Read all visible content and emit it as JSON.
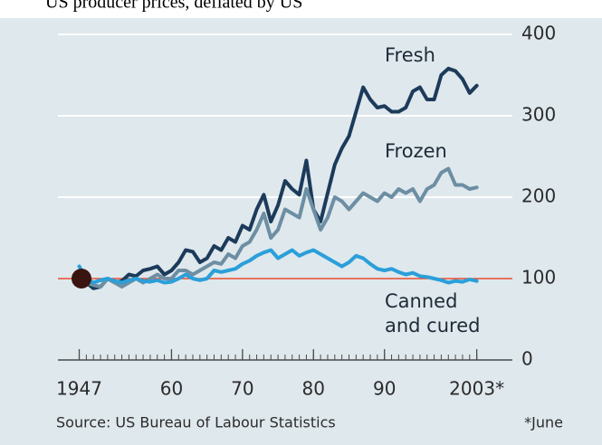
{
  "chart_data": {
    "type": "line",
    "title": "US producer prices, deflated by US",
    "source": "Source: US Bureau of Labour Statistics",
    "footnote": "*June",
    "x": [
      1947,
      1948,
      1949,
      1950,
      1951,
      1952,
      1953,
      1954,
      1955,
      1956,
      1957,
      1958,
      1959,
      1960,
      1961,
      1962,
      1963,
      1964,
      1965,
      1966,
      1967,
      1968,
      1969,
      1970,
      1971,
      1972,
      1973,
      1974,
      1975,
      1976,
      1977,
      1978,
      1979,
      1980,
      1981,
      1982,
      1983,
      1984,
      1985,
      1986,
      1987,
      1988,
      1989,
      1990,
      1991,
      1992,
      1993,
      1994,
      1995,
      1996,
      1997,
      1998,
      1999,
      2000,
      2001,
      2002,
      2003
    ],
    "series": [
      {
        "name": "Fresh",
        "color": "#1c3b5a",
        "values": [
          100,
          95,
          88,
          90,
          100,
          95,
          97,
          105,
          103,
          110,
          112,
          115,
          105,
          110,
          120,
          135,
          133,
          120,
          125,
          140,
          135,
          150,
          145,
          165,
          160,
          185,
          203,
          170,
          190,
          220,
          210,
          203,
          245,
          185,
          170,
          205,
          240,
          260,
          275,
          305,
          335,
          320,
          310,
          312,
          305,
          305,
          310,
          330,
          335,
          320,
          320,
          350,
          358,
          355,
          345,
          328,
          337
        ]
      },
      {
        "name": "Frozen",
        "color": "#6d8ea3",
        "values": [
          100,
          95,
          92,
          90,
          100,
          95,
          90,
          95,
          100,
          95,
          100,
          105,
          100,
          100,
          110,
          110,
          105,
          110,
          115,
          120,
          118,
          130,
          125,
          140,
          145,
          160,
          180,
          150,
          160,
          185,
          180,
          175,
          210,
          185,
          160,
          175,
          200,
          195,
          185,
          195,
          205,
          200,
          195,
          205,
          200,
          210,
          205,
          210,
          195,
          210,
          215,
          230,
          235,
          215,
          215,
          210,
          212
        ]
      },
      {
        "name": "Canned and cured",
        "color": "#2b9fd9",
        "values": [
          115,
          100,
          95,
          98,
          100,
          97,
          95,
          98,
          100,
          97,
          96,
          98,
          95,
          96,
          100,
          105,
          100,
          98,
          100,
          110,
          108,
          110,
          112,
          118,
          122,
          128,
          132,
          135,
          125,
          130,
          135,
          128,
          132,
          135,
          130,
          125,
          120,
          115,
          120,
          128,
          125,
          118,
          112,
          110,
          112,
          108,
          105,
          107,
          103,
          102,
          100,
          98,
          95,
          97,
          96,
          99,
          97
        ]
      }
    ],
    "xlim": [
      1944,
      2007
    ],
    "xticks": [
      1947,
      {
        "value": 1960,
        "label": "60"
      },
      {
        "value": 1970,
        "label": "70"
      },
      {
        "value": 1980,
        "label": "80"
      },
      {
        "value": 1990,
        "label": "90"
      },
      {
        "value": 2003,
        "label": "2003*"
      }
    ],
    "xminorticks": [
      1947,
      1948,
      1949,
      1950,
      1951,
      1952,
      1953,
      1954,
      1955,
      1956,
      1957,
      1958,
      1959,
      1960,
      1961,
      1962,
      1963,
      1964,
      1965,
      1966,
      1967,
      1968,
      1969,
      1970,
      1971,
      1972,
      1973,
      1974,
      1975,
      1976,
      1977,
      1978,
      1979,
      1980,
      1981,
      1982,
      1983,
      1984,
      1985,
      1986,
      1987,
      1988,
      1989,
      1990,
      1991,
      1992,
      1993,
      1994,
      1995,
      1996,
      1997,
      1998,
      1999,
      2000,
      2001,
      2002,
      2003
    ],
    "ylim": [
      0,
      400
    ],
    "yticks": [
      0,
      100,
      200,
      300,
      400
    ],
    "reference_line": {
      "value": 100,
      "color": "#e0452a"
    },
    "grid": true
  }
}
